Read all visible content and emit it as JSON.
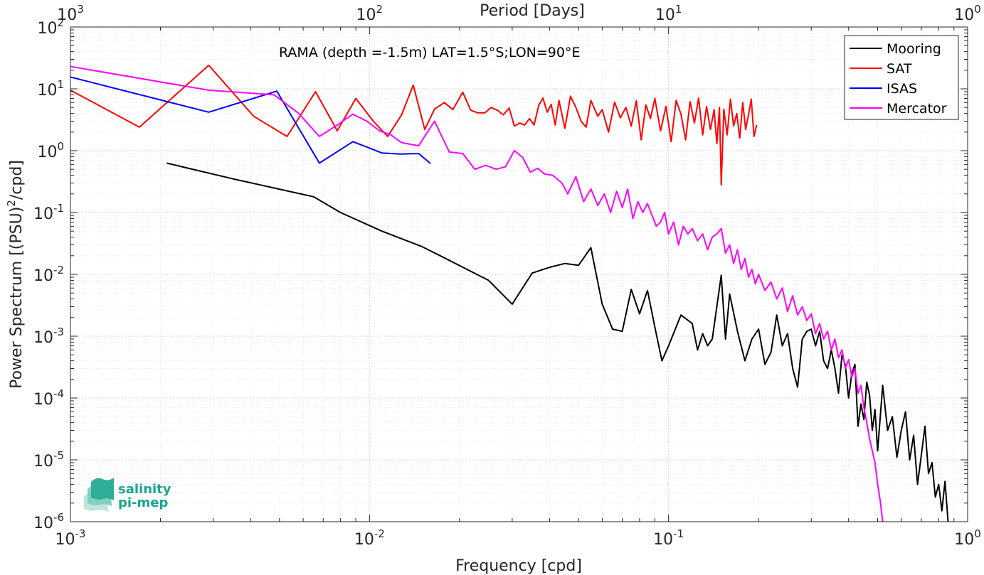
{
  "chart_data": {
    "type": "line",
    "title": "",
    "annotation": "RAMA (depth =-1.5m) LAT=1.5°S;LON=90°E",
    "xlabel": "Frequency [cpd]",
    "ylabel_main": "Power Spectrum [(PSU)",
    "ylabel_sup": "2",
    "ylabel_tail": "/cpd]",
    "top_axis_label": "Period [Days]",
    "xscale": "log",
    "yscale": "log",
    "xlim": [
      0.001,
      1
    ],
    "ylim": [
      1e-06,
      100
    ],
    "grid": true,
    "legend_placement": "top-right",
    "x_tick_labels": [
      {
        "base": "10",
        "exp": "-3"
      },
      {
        "base": "10",
        "exp": "-2"
      },
      {
        "base": "10",
        "exp": "-1"
      },
      {
        "base": "10",
        "exp": "0"
      }
    ],
    "top_tick_labels": [
      {
        "base": "10",
        "exp": "3"
      },
      {
        "base": "10",
        "exp": "2"
      },
      {
        "base": "10",
        "exp": "1"
      },
      {
        "base": "10",
        "exp": "0"
      }
    ],
    "y_tick_labels": [
      {
        "base": "10",
        "exp": "2"
      },
      {
        "base": "10",
        "exp": "1"
      },
      {
        "base": "10",
        "exp": "0"
      },
      {
        "base": "10",
        "exp": "-1"
      },
      {
        "base": "10",
        "exp": "-2"
      },
      {
        "base": "10",
        "exp": "-3"
      },
      {
        "base": "10",
        "exp": "-4"
      },
      {
        "base": "10",
        "exp": "-5"
      },
      {
        "base": "10",
        "exp": "-6"
      }
    ],
    "series": [
      {
        "name": "Mooring",
        "color": "#000000",
        "points": [
          [
            0.0021,
            0.63
          ],
          [
            0.0035,
            0.35
          ],
          [
            0.0065,
            0.18
          ],
          [
            0.008,
            0.1
          ],
          [
            0.011,
            0.05
          ],
          [
            0.015,
            0.028
          ],
          [
            0.018,
            0.018
          ],
          [
            0.025,
            0.008
          ],
          [
            0.03,
            0.0033
          ],
          [
            0.035,
            0.0105
          ],
          [
            0.04,
            0.013
          ],
          [
            0.045,
            0.015
          ],
          [
            0.05,
            0.014
          ],
          [
            0.055,
            0.027
          ],
          [
            0.06,
            0.0033
          ],
          [
            0.065,
            0.0013
          ],
          [
            0.07,
            0.0012
          ],
          [
            0.075,
            0.0057
          ],
          [
            0.08,
            0.0023
          ],
          [
            0.085,
            0.0055
          ],
          [
            0.09,
            0.0014
          ],
          [
            0.095,
            0.0004
          ],
          [
            0.1,
            0.0007
          ],
          [
            0.11,
            0.0022
          ],
          [
            0.12,
            0.0016
          ],
          [
            0.125,
            0.0006
          ],
          [
            0.13,
            0.0011
          ],
          [
            0.135,
            0.0007
          ],
          [
            0.14,
            0.0009
          ],
          [
            0.15,
            0.0097
          ],
          [
            0.155,
            0.0009
          ],
          [
            0.16,
            0.0048
          ],
          [
            0.17,
            0.0012
          ],
          [
            0.18,
            0.0004
          ],
          [
            0.19,
            0.0009
          ],
          [
            0.2,
            0.0013
          ],
          [
            0.21,
            0.00035
          ],
          [
            0.22,
            0.00055
          ],
          [
            0.23,
            0.0022
          ],
          [
            0.24,
            0.0007
          ],
          [
            0.25,
            0.0011
          ],
          [
            0.26,
            0.0003
          ],
          [
            0.27,
            0.00015
          ],
          [
            0.28,
            0.0009
          ],
          [
            0.29,
            0.0012
          ],
          [
            0.3,
            0.0013
          ],
          [
            0.31,
            0.0007
          ],
          [
            0.32,
            0.0012
          ],
          [
            0.33,
            0.0004
          ],
          [
            0.34,
            0.0003
          ],
          [
            0.35,
            0.0006
          ],
          [
            0.36,
            0.0003
          ],
          [
            0.37,
            0.00012
          ],
          [
            0.38,
            0.0005
          ],
          [
            0.39,
            0.00034
          ],
          [
            0.4,
            0.0001
          ],
          [
            0.41,
            0.00025
          ],
          [
            0.42,
            0.00035
          ],
          [
            0.43,
            3.5e-05
          ],
          [
            0.44,
            8e-05
          ],
          [
            0.45,
            4.5e-05
          ],
          [
            0.46,
            0.00018
          ],
          [
            0.47,
            0.00011
          ],
          [
            0.48,
            3e-05
          ],
          [
            0.49,
            6.5e-05
          ],
          [
            0.5,
            1.4e-05
          ],
          [
            0.52,
            0.00016
          ],
          [
            0.54,
            3e-05
          ],
          [
            0.56,
            5e-05
          ],
          [
            0.58,
            1.1e-05
          ],
          [
            0.6,
            3e-05
          ],
          [
            0.62,
            6e-05
          ],
          [
            0.64,
            1e-05
          ],
          [
            0.66,
            2.5e-05
          ],
          [
            0.68,
            4e-06
          ],
          [
            0.7,
            1.2e-05
          ],
          [
            0.72,
            3.5e-05
          ],
          [
            0.74,
            6e-06
          ],
          [
            0.76,
            9e-06
          ],
          [
            0.78,
            2.5e-06
          ],
          [
            0.8,
            4e-06
          ],
          [
            0.82,
            1.5e-06
          ],
          [
            0.84,
            4.5e-06
          ],
          [
            0.86,
            1e-06
          ]
        ]
      },
      {
        "name": "SAT",
        "color": "#ff0000",
        "points": [
          [
            0.001,
            9.5
          ],
          [
            0.0017,
            2.4
          ],
          [
            0.0029,
            24
          ],
          [
            0.0041,
            3.6
          ],
          [
            0.0053,
            1.7
          ],
          [
            0.0066,
            9
          ],
          [
            0.0078,
            2.1
          ],
          [
            0.009,
            7
          ],
          [
            0.0103,
            3
          ],
          [
            0.0115,
            1.7
          ],
          [
            0.0128,
            3.8
          ],
          [
            0.014,
            11.5
          ],
          [
            0.0153,
            2.2
          ],
          [
            0.0165,
            4.7
          ],
          [
            0.0178,
            6
          ],
          [
            0.019,
            4.6
          ],
          [
            0.0205,
            8.8
          ],
          [
            0.0218,
            4.5
          ],
          [
            0.023,
            4.1
          ],
          [
            0.0243,
            4.1
          ],
          [
            0.0255,
            5
          ],
          [
            0.0268,
            4.5
          ],
          [
            0.028,
            3.8
          ],
          [
            0.0293,
            4.9
          ],
          [
            0.0305,
            2.5
          ],
          [
            0.0318,
            2.8
          ],
          [
            0.033,
            2.6
          ],
          [
            0.0343,
            3.3
          ],
          [
            0.0355,
            2.6
          ],
          [
            0.0368,
            5.4
          ],
          [
            0.038,
            7.1
          ],
          [
            0.0393,
            4.2
          ],
          [
            0.0405,
            5.6
          ],
          [
            0.0418,
            2.6
          ],
          [
            0.043,
            6.5
          ],
          [
            0.045,
            2.3
          ],
          [
            0.047,
            7.6
          ],
          [
            0.049,
            5
          ],
          [
            0.051,
            3
          ],
          [
            0.053,
            2.4
          ],
          [
            0.055,
            6.5
          ],
          [
            0.058,
            3.6
          ],
          [
            0.06,
            4.6
          ],
          [
            0.063,
            2
          ],
          [
            0.066,
            6.1
          ],
          [
            0.069,
            3.4
          ],
          [
            0.072,
            5
          ],
          [
            0.075,
            2.5
          ],
          [
            0.078,
            6.4
          ],
          [
            0.081,
            1.5
          ],
          [
            0.084,
            5.5
          ],
          [
            0.087,
            3.3
          ],
          [
            0.09,
            7
          ],
          [
            0.094,
            2.1
          ],
          [
            0.098,
            5.2
          ],
          [
            0.102,
            1.4
          ],
          [
            0.106,
            6.5
          ],
          [
            0.11,
            3.9
          ],
          [
            0.114,
            1.5
          ],
          [
            0.118,
            6.2
          ],
          [
            0.122,
            2.8
          ],
          [
            0.126,
            7.1
          ],
          [
            0.13,
            1.8
          ],
          [
            0.134,
            5.2
          ],
          [
            0.138,
            2.2
          ],
          [
            0.142,
            4.6
          ],
          [
            0.145,
            1.3
          ],
          [
            0.148,
            5
          ],
          [
            0.15,
            0.28
          ],
          [
            0.153,
            4.7
          ],
          [
            0.157,
            1.8
          ],
          [
            0.161,
            6.8
          ],
          [
            0.165,
            2.5
          ],
          [
            0.169,
            4
          ],
          [
            0.173,
            1.6
          ],
          [
            0.177,
            6
          ],
          [
            0.181,
            2.2
          ],
          [
            0.185,
            3.8
          ],
          [
            0.189,
            6.8
          ],
          [
            0.193,
            1.7
          ],
          [
            0.197,
            2.6
          ]
        ]
      },
      {
        "name": "ISAS",
        "color": "#0000ff",
        "points": [
          [
            0.001,
            15.5
          ],
          [
            0.0029,
            4.2
          ],
          [
            0.0049,
            9.2
          ],
          [
            0.0068,
            0.63
          ],
          [
            0.0088,
            1.4
          ],
          [
            0.011,
            0.92
          ],
          [
            0.0127,
            0.88
          ],
          [
            0.0146,
            0.9
          ],
          [
            0.016,
            0.62
          ]
        ]
      },
      {
        "name": "Mercator",
        "color": "#ff00ff",
        "points": [
          [
            0.001,
            23
          ],
          [
            0.0029,
            9.5
          ],
          [
            0.0048,
            8
          ],
          [
            0.0058,
            4
          ],
          [
            0.0068,
            1.7
          ],
          [
            0.0078,
            2.6
          ],
          [
            0.0088,
            3.9
          ],
          [
            0.0098,
            3
          ],
          [
            0.0108,
            2.1
          ],
          [
            0.0118,
            1.8
          ],
          [
            0.0128,
            1.35
          ],
          [
            0.0146,
            1.2
          ],
          [
            0.0165,
            3
          ],
          [
            0.0185,
            0.95
          ],
          [
            0.0205,
            0.9
          ],
          [
            0.0225,
            0.5
          ],
          [
            0.0245,
            0.58
          ],
          [
            0.0265,
            0.5
          ],
          [
            0.0285,
            0.55
          ],
          [
            0.0305,
            1
          ],
          [
            0.0325,
            0.78
          ],
          [
            0.0345,
            0.45
          ],
          [
            0.0365,
            0.52
          ],
          [
            0.0385,
            0.42
          ],
          [
            0.041,
            0.4
          ],
          [
            0.044,
            0.3
          ],
          [
            0.046,
            0.2
          ],
          [
            0.049,
            0.38
          ],
          [
            0.052,
            0.15
          ],
          [
            0.055,
            0.24
          ],
          [
            0.058,
            0.13
          ],
          [
            0.061,
            0.2
          ],
          [
            0.064,
            0.1
          ],
          [
            0.067,
            0.22
          ],
          [
            0.07,
            0.12
          ],
          [
            0.073,
            0.24
          ],
          [
            0.076,
            0.08
          ],
          [
            0.079,
            0.15
          ],
          [
            0.082,
            0.1
          ],
          [
            0.085,
            0.14
          ],
          [
            0.088,
            0.09
          ],
          [
            0.091,
            0.06
          ],
          [
            0.094,
            0.07
          ],
          [
            0.097,
            0.1
          ],
          [
            0.1,
            0.045
          ],
          [
            0.104,
            0.07
          ],
          [
            0.108,
            0.03
          ],
          [
            0.112,
            0.06
          ],
          [
            0.116,
            0.045
          ],
          [
            0.12,
            0.055
          ],
          [
            0.125,
            0.035
          ],
          [
            0.13,
            0.045
          ],
          [
            0.135,
            0.025
          ],
          [
            0.14,
            0.04
          ],
          [
            0.145,
            0.045
          ],
          [
            0.15,
            0.055
          ],
          [
            0.155,
            0.022
          ],
          [
            0.16,
            0.03
          ],
          [
            0.165,
            0.015
          ],
          [
            0.17,
            0.025
          ],
          [
            0.175,
            0.012
          ],
          [
            0.18,
            0.018
          ],
          [
            0.185,
            0.009
          ],
          [
            0.19,
            0.012
          ],
          [
            0.195,
            0.007
          ],
          [
            0.2,
            0.01
          ],
          [
            0.21,
            0.0055
          ],
          [
            0.22,
            0.0075
          ],
          [
            0.23,
            0.004
          ],
          [
            0.24,
            0.006
          ],
          [
            0.25,
            0.0025
          ],
          [
            0.26,
            0.0045
          ],
          [
            0.27,
            0.0022
          ],
          [
            0.28,
            0.003
          ],
          [
            0.29,
            0.0018
          ],
          [
            0.3,
            0.0023
          ],
          [
            0.31,
            0.0011
          ],
          [
            0.32,
            0.0016
          ],
          [
            0.33,
            0.0009
          ],
          [
            0.34,
            0.0012
          ],
          [
            0.35,
            0.0006
          ],
          [
            0.36,
            0.0009
          ],
          [
            0.37,
            0.00045
          ],
          [
            0.38,
            0.0006
          ],
          [
            0.39,
            0.0003
          ],
          [
            0.4,
            0.00042
          ],
          [
            0.41,
            0.00022
          ],
          [
            0.42,
            0.0003
          ],
          [
            0.43,
            0.00012
          ],
          [
            0.44,
            0.00016
          ],
          [
            0.45,
            7e-05
          ],
          [
            0.46,
            4e-05
          ],
          [
            0.47,
            2.2e-05
          ],
          [
            0.48,
            1.4e-05
          ],
          [
            0.49,
            9e-06
          ],
          [
            0.5,
            4e-06
          ],
          [
            0.51,
            2.2e-06
          ],
          [
            0.52,
            1e-06
          ]
        ]
      }
    ]
  },
  "logo": {
    "line1": "salinity",
    "line2": "pi-mep"
  }
}
